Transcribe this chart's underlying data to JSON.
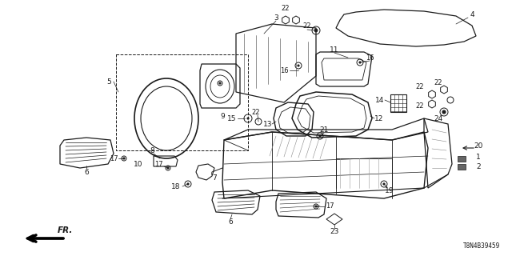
{
  "background_color": "#ffffff",
  "diagram_id": "T8N4B39459",
  "line_color": "#1a1a1a",
  "text_color": "#1a1a1a"
}
